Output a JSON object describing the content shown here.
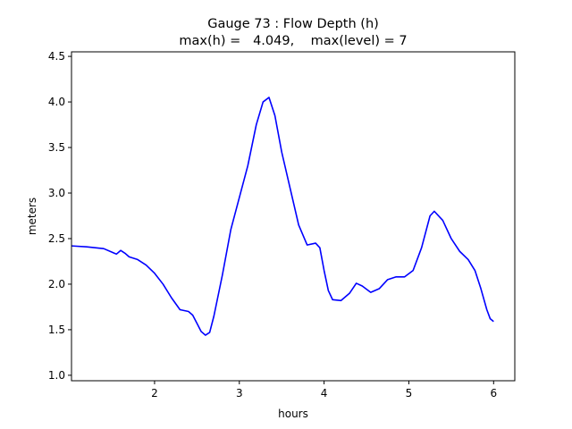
{
  "chart_data": {
    "type": "line",
    "title": "Gauge 73 : Flow Depth (h)",
    "subtitle": "max(h) =   4.049,    max(level) = 7",
    "x_label": "hours",
    "y_label": "meters",
    "xlim": [
      1.02,
      6.25
    ],
    "ylim": [
      0.94,
      4.55
    ],
    "xticks": [
      2,
      3,
      4,
      5,
      6
    ],
    "yticks": [
      {
        "value": 1,
        "label": "1.0"
      },
      1.5,
      {
        "value": 2,
        "label": "2.0"
      },
      2.5,
      {
        "value": 3,
        "label": "3.0"
      },
      3.5,
      {
        "value": 4,
        "label": "4.0"
      },
      4.5
    ],
    "grid": false,
    "series": [
      {
        "color": "#0000ff",
        "x": [
          1.02,
          1.2,
          1.4,
          1.5,
          1.55,
          1.6,
          1.65,
          1.7,
          1.8,
          1.9,
          2.0,
          2.1,
          2.2,
          2.3,
          2.4,
          2.45,
          2.5,
          2.55,
          2.6,
          2.65,
          2.7,
          2.8,
          2.9,
          3.0,
          3.1,
          3.2,
          3.28,
          3.35,
          3.42,
          3.5,
          3.6,
          3.7,
          3.8,
          3.9,
          3.95,
          4.0,
          4.05,
          4.1,
          4.2,
          4.3,
          4.38,
          4.45,
          4.55,
          4.65,
          4.75,
          4.85,
          4.95,
          5.05,
          5.15,
          5.25,
          5.3,
          5.4,
          5.5,
          5.6,
          5.7,
          5.78,
          5.85,
          5.92,
          5.96,
          6.0
        ],
        "values": [
          2.42,
          2.41,
          2.39,
          2.35,
          2.33,
          2.37,
          2.34,
          2.3,
          2.27,
          2.21,
          2.12,
          2.0,
          1.85,
          1.72,
          1.7,
          1.66,
          1.57,
          1.48,
          1.44,
          1.47,
          1.65,
          2.1,
          2.6,
          2.95,
          3.3,
          3.75,
          4.0,
          4.05,
          3.85,
          3.45,
          3.05,
          2.65,
          2.43,
          2.45,
          2.4,
          2.15,
          1.93,
          1.83,
          1.82,
          1.9,
          2.01,
          1.98,
          1.91,
          1.95,
          2.05,
          2.08,
          2.08,
          2.15,
          2.4,
          2.75,
          2.8,
          2.7,
          2.5,
          2.36,
          2.27,
          2.15,
          1.95,
          1.72,
          1.62,
          1.59
        ]
      }
    ]
  }
}
